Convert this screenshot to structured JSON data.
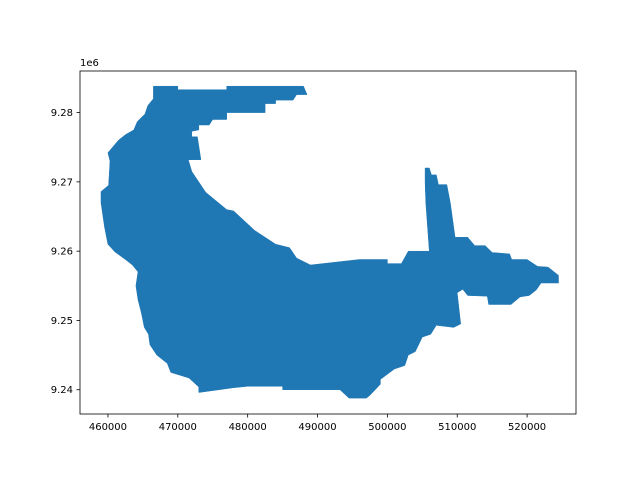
{
  "chart_data": {
    "type": "map",
    "title": "",
    "xlabel": "",
    "ylabel": "",
    "y_offset_label": "1e6",
    "xlim": [
      456000,
      527000
    ],
    "ylim": [
      9236500,
      9286000
    ],
    "x_ticks": [
      460000,
      470000,
      480000,
      490000,
      500000,
      510000,
      520000
    ],
    "x_tick_labels": [
      "460000",
      "470000",
      "480000",
      "490000",
      "500000",
      "510000",
      "520000"
    ],
    "y_ticks": [
      9240000,
      9250000,
      9260000,
      9270000,
      9280000
    ],
    "y_tick_labels": [
      "9.24",
      "9.25",
      "9.26",
      "9.27",
      "9.28"
    ],
    "grid": false,
    "fill_color": "#1f77b4",
    "polygon": [
      [
        466500,
        9283800
      ],
      [
        470000,
        9283800
      ],
      [
        470000,
        9283300
      ],
      [
        477000,
        9283300
      ],
      [
        477000,
        9283800
      ],
      [
        488000,
        9283800
      ],
      [
        488500,
        9282600
      ],
      [
        487000,
        9282600
      ],
      [
        486500,
        9281800
      ],
      [
        484000,
        9281800
      ],
      [
        484000,
        9281300
      ],
      [
        482500,
        9281300
      ],
      [
        482500,
        9280000
      ],
      [
        480000,
        9280000
      ],
      [
        477000,
        9280000
      ],
      [
        477000,
        9279000
      ],
      [
        475000,
        9279000
      ],
      [
        474500,
        9278200
      ],
      [
        473000,
        9278200
      ],
      [
        473000,
        9277500
      ],
      [
        472000,
        9277300
      ],
      [
        472000,
        9276500
      ],
      [
        472800,
        9276500
      ],
      [
        473300,
        9273200
      ],
      [
        471500,
        9273200
      ],
      [
        472000,
        9271500
      ],
      [
        474000,
        9268500
      ],
      [
        477000,
        9266000
      ],
      [
        478000,
        9265800
      ],
      [
        481000,
        9263000
      ],
      [
        484000,
        9261000
      ],
      [
        486000,
        9260500
      ],
      [
        487000,
        9259000
      ],
      [
        489000,
        9258000
      ],
      [
        496000,
        9258800
      ],
      [
        500000,
        9258800
      ],
      [
        500000,
        9258200
      ],
      [
        502000,
        9258200
      ],
      [
        503000,
        9260000
      ],
      [
        506000,
        9260000
      ],
      [
        505500,
        9267000
      ],
      [
        505400,
        9270000
      ],
      [
        505400,
        9272000
      ],
      [
        506000,
        9272000
      ],
      [
        506300,
        9271000
      ],
      [
        507000,
        9271000
      ],
      [
        507300,
        9269600
      ],
      [
        508500,
        9269600
      ],
      [
        509000,
        9267000
      ],
      [
        509700,
        9262000
      ],
      [
        511500,
        9262000
      ],
      [
        512500,
        9260800
      ],
      [
        514000,
        9260800
      ],
      [
        515000,
        9259800
      ],
      [
        517500,
        9259600
      ],
      [
        517800,
        9258800
      ],
      [
        520000,
        9258800
      ],
      [
        521500,
        9257800
      ],
      [
        523000,
        9257700
      ],
      [
        524500,
        9256500
      ],
      [
        524500,
        9255400
      ],
      [
        522000,
        9255400
      ],
      [
        521300,
        9254400
      ],
      [
        520300,
        9253600
      ],
      [
        519000,
        9253400
      ],
      [
        517700,
        9252300
      ],
      [
        514500,
        9252300
      ],
      [
        514300,
        9253500
      ],
      [
        511500,
        9253600
      ],
      [
        510800,
        9254500
      ],
      [
        510000,
        9254000
      ],
      [
        510500,
        9249500
      ],
      [
        509500,
        9249000
      ],
      [
        507000,
        9249300
      ],
      [
        506200,
        9248000
      ],
      [
        505000,
        9247600
      ],
      [
        504000,
        9245500
      ],
      [
        503000,
        9245000
      ],
      [
        502500,
        9243500
      ],
      [
        501000,
        9243000
      ],
      [
        499000,
        9241500
      ],
      [
        499000,
        9240800
      ],
      [
        497500,
        9239200
      ],
      [
        497000,
        9238800
      ],
      [
        494500,
        9238800
      ],
      [
        493200,
        9240000
      ],
      [
        485000,
        9240000
      ],
      [
        485000,
        9240500
      ],
      [
        480000,
        9240500
      ],
      [
        478000,
        9240300
      ],
      [
        473000,
        9239600
      ],
      [
        473000,
        9240400
      ],
      [
        471600,
        9241700
      ],
      [
        469000,
        9242500
      ],
      [
        468500,
        9243800
      ],
      [
        467000,
        9245000
      ],
      [
        466000,
        9246500
      ],
      [
        465800,
        9248000
      ],
      [
        465200,
        9249000
      ],
      [
        464800,
        9251000
      ],
      [
        464300,
        9253000
      ],
      [
        464000,
        9255000
      ],
      [
        464300,
        9257000
      ],
      [
        463500,
        9258000
      ],
      [
        462500,
        9258800
      ],
      [
        461000,
        9259900
      ],
      [
        460000,
        9261000
      ],
      [
        459500,
        9263500
      ],
      [
        459000,
        9267000
      ],
      [
        459000,
        9268600
      ],
      [
        460100,
        9269500
      ],
      [
        460300,
        9273000
      ],
      [
        460000,
        9274200
      ],
      [
        461500,
        9276000
      ],
      [
        462500,
        9276800
      ],
      [
        463700,
        9277500
      ],
      [
        464200,
        9278700
      ],
      [
        465300,
        9279800
      ],
      [
        465700,
        9281000
      ],
      [
        466500,
        9282000
      ]
    ]
  }
}
